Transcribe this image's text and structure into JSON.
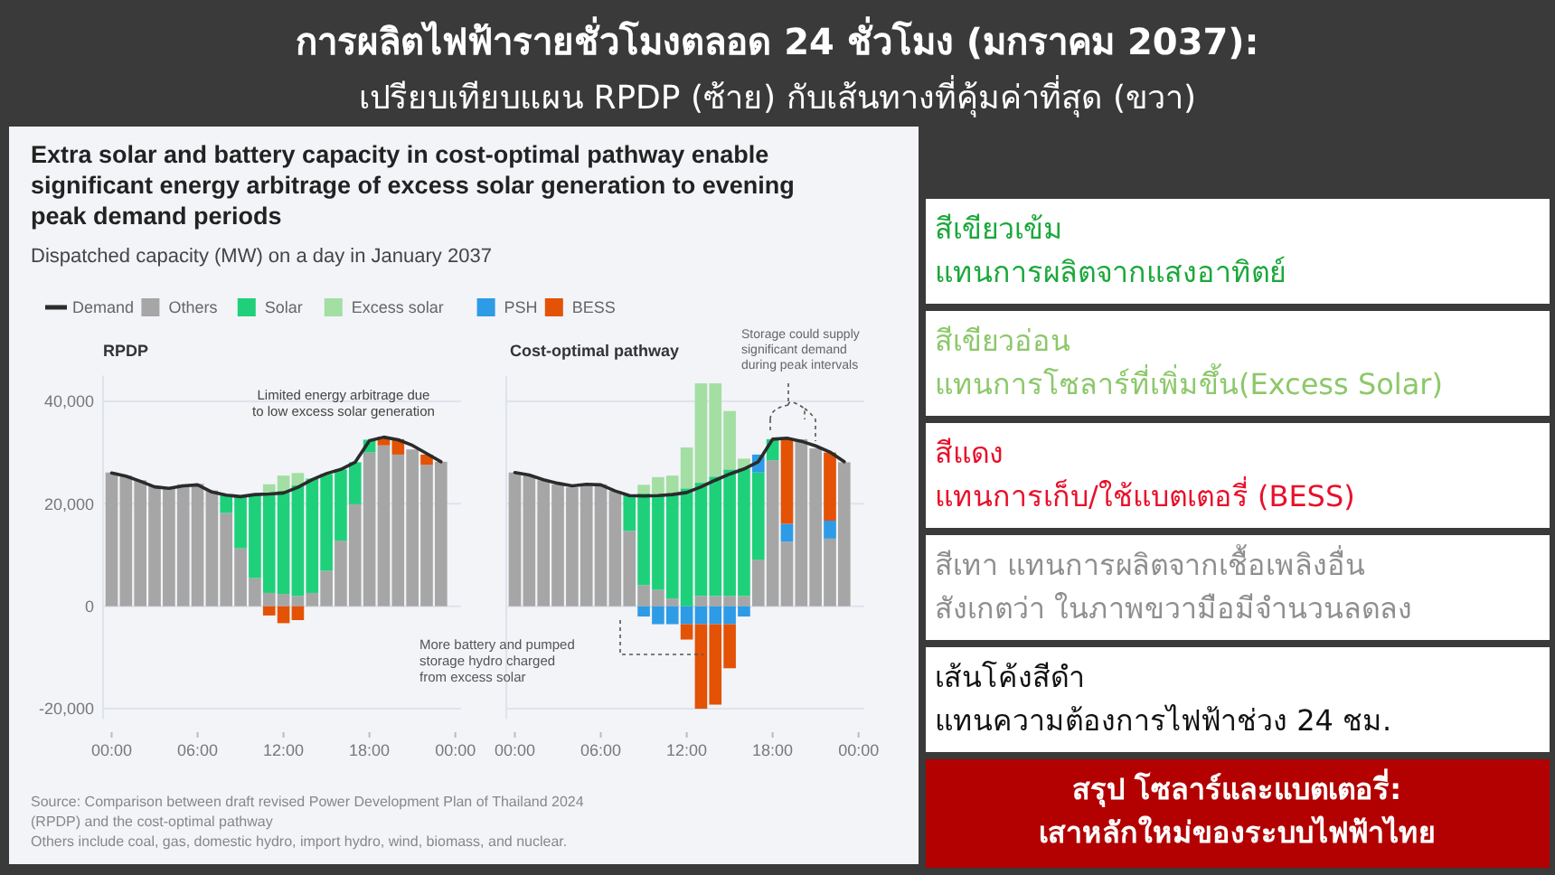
{
  "chart_data": [
    {
      "type": "bar",
      "stacked": true,
      "title": "Extra solar and battery capacity in cost-optimal pathway enable\nsignificant energy arbitrage of excess solar generation to evening\npeak demand periods",
      "subtitle": "Dispatched capacity (MW) on a day in January 2037",
      "legend": "top",
      "grid": "y",
      "tick_labels": "xy",
      "x": [
        0,
        1,
        2,
        3,
        4,
        5,
        6,
        7,
        8,
        9,
        10,
        11,
        12,
        13,
        14,
        15,
        16,
        17,
        18,
        19,
        20,
        21,
        22,
        23
      ],
      "xlim": [
        -0.6,
        24.4
      ],
      "xticks": [
        {
          "value": 0,
          "label": "00:00"
        },
        {
          "value": 6,
          "label": "06:00"
        },
        {
          "value": 12,
          "label": "12:00"
        },
        {
          "value": 18,
          "label": "18:00"
        },
        {
          "value": 24,
          "label": "00:00"
        }
      ],
      "ylim": [
        -22000,
        45000
      ],
      "yticks": [
        {
          "value": -20000,
          "label": "-20,000"
        },
        {
          "value": 0,
          "label": "0"
        },
        {
          "value": 20000,
          "label": "20,000"
        },
        {
          "value": 40000,
          "label": "40,000"
        }
      ],
      "series": [
        {
          "name": "Demand",
          "type": "line",
          "color": "#2b2b2b",
          "values": [
            26000,
            25400,
            24400,
            23300,
            23000,
            23500,
            23700,
            22300,
            21700,
            21400,
            21800,
            21900,
            22100,
            23200,
            24700,
            25900,
            26700,
            28100,
            32300,
            33000,
            32500,
            31400,
            29800,
            28200
          ]
        },
        {
          "name": "Others",
          "color": "#a6a6a6",
          "values": [
            26100,
            25500,
            24600,
            23500,
            23000,
            23800,
            23900,
            22600,
            18200,
            11300,
            5500,
            2600,
            2400,
            2000,
            2600,
            6900,
            12800,
            19900,
            30000,
            31400,
            29600,
            30600,
            27600,
            28200
          ]
        },
        {
          "name": "Solar",
          "color": "#1fd07a",
          "values": [
            null,
            null,
            null,
            null,
            null,
            null,
            null,
            null,
            3600,
            10100,
            16300,
            19600,
            20100,
            21600,
            22300,
            18900,
            13900,
            8200,
            2500,
            null,
            null,
            null,
            null,
            null
          ]
        },
        {
          "name": "Excess solar",
          "color": "#a3dea3",
          "values": [
            null,
            null,
            null,
            null,
            null,
            null,
            null,
            null,
            null,
            null,
            null,
            1600,
            3000,
            2400,
            null,
            null,
            null,
            null,
            null,
            null,
            null,
            null,
            null,
            null
          ]
        },
        {
          "name": "PSH",
          "color": "#2e9be6",
          "values": [
            null,
            null,
            null,
            null,
            null,
            null,
            null,
            null,
            null,
            null,
            null,
            null,
            null,
            null,
            null,
            null,
            null,
            null,
            null,
            null,
            null,
            null,
            null,
            null
          ]
        },
        {
          "name": "BESS",
          "color": "#e35205",
          "values": [
            null,
            null,
            null,
            null,
            null,
            null,
            null,
            null,
            null,
            null,
            null,
            -1800,
            -3300,
            -2700,
            null,
            null,
            null,
            null,
            null,
            1700,
            3000,
            null,
            2000,
            null
          ]
        }
      ],
      "annotations": [
        "RPDP",
        "Limited energy arbitrage due\nto low excess solar generation",
        "Source: Comparison between draft revised Power Development Plan of Thailand 2024\n(RPDP) and the cost-optimal pathway",
        "Others include coal, gas, domestic hydro, import hydro, wind, biomass, and nuclear."
      ]
    },
    {
      "type": "bar",
      "stacked": true,
      "title": "Cost-optimal pathway",
      "legend": false,
      "grid": "y",
      "tick_labels": "x",
      "x": [
        0,
        1,
        2,
        3,
        4,
        5,
        6,
        7,
        8,
        9,
        10,
        11,
        12,
        13,
        14,
        15,
        16,
        17,
        18,
        19,
        20,
        21,
        22,
        23
      ],
      "xlim": [
        -0.6,
        24.4
      ],
      "xticks": [
        {
          "value": 0,
          "label": "00:00"
        },
        {
          "value": 6,
          "label": "06:00"
        },
        {
          "value": 12,
          "label": "12:00"
        },
        {
          "value": 18,
          "label": "18:00"
        },
        {
          "value": 24,
          "label": "00:00"
        }
      ],
      "ylim": [
        -22000,
        45000
      ],
      "yticks": [
        {
          "value": -20000,
          "label": null
        },
        {
          "value": 0,
          "label": null
        },
        {
          "value": 20000,
          "label": null
        },
        {
          "value": 40000,
          "label": null
        }
      ],
      "series": [
        {
          "type": "line",
          "color": "#2b2b2b",
          "values": [
            26100,
            25600,
            24700,
            24000,
            23500,
            23800,
            23700,
            22500,
            21600,
            21500,
            21600,
            21800,
            22200,
            23300,
            24600,
            25800,
            26800,
            28200,
            32600,
            32800,
            32200,
            31300,
            30100,
            28200
          ]
        },
        {
          "color": "#a6a6a6",
          "values": [
            26100,
            25500,
            24600,
            23800,
            23200,
            23800,
            23800,
            22500,
            14700,
            4100,
            3200,
            1500,
            0,
            2000,
            2000,
            2000,
            2000,
            9100,
            28500,
            12600,
            32600,
            30800,
            13200,
            28100
          ]
        },
        {
          "color": "#1fd07a",
          "values": [
            null,
            null,
            null,
            null,
            null,
            null,
            null,
            null,
            7100,
            17900,
            18600,
            20600,
            23000,
            22100,
            23300,
            24700,
            24900,
            17000,
            4100,
            null,
            null,
            null,
            null,
            null
          ]
        },
        {
          "color": "#a3dea3",
          "values": [
            null,
            null,
            null,
            null,
            null,
            null,
            null,
            null,
            null,
            1700,
            3400,
            3400,
            8000,
            19400,
            18200,
            11400,
            1900,
            null,
            null,
            null,
            null,
            null,
            null,
            null
          ]
        },
        {
          "color": "#2e9be6",
          "values": [
            null,
            null,
            null,
            null,
            null,
            null,
            null,
            null,
            null,
            -2000,
            -3500,
            -3500,
            -3500,
            -3500,
            -3500,
            -3500,
            -2000,
            3500,
            null,
            3500,
            null,
            null,
            3500,
            null
          ]
        },
        {
          "color": "#e35205",
          "values": [
            null,
            null,
            null,
            null,
            null,
            null,
            null,
            null,
            null,
            null,
            null,
            null,
            -3000,
            -16500,
            -15700,
            -8600,
            null,
            null,
            null,
            16500,
            null,
            null,
            13300,
            null
          ]
        }
      ],
      "annotations": [
        "Storage could supply\nsignificant demand\nduring peak intervals",
        "More battery and pumped\nstorage hydro charged\nfrom excess solar"
      ]
    },
    {
      "type": "other",
      "title": "การผลิตไฟฟ้ารายชั่วโมงตลอด 24 ชั่วโมง (มกราคม 2037):",
      "subtitle": "เปรียบเทียบแผน RPDP (ซ้าย) กับเส้นทางที่คุ้มค่าที่สุด (ขวา)",
      "annotations": [
        "สีเขียวเข้ม\nแทนการผลิตจากแสงอาทิตย์",
        "สีเขียวอ่อน\nแทนการโซลาร์ที่เพิ่มขึ้น(Excess Solar)",
        "สีแดง\nแทนการเก็บ/ใช้แบตเตอรี่ (BESS)",
        "สีเทา แทนการผลิตจากเชื้อเพลิงอื่น\nสังเกตว่า ในภาพขวามือมีจำนวนลดลง",
        "เส้นโค้งสีดำ\nแทนความต้องการไฟฟ้าช่วง 24 ชม.",
        "สรุป โซลาร์และแบตเตอรี่:\nเสาหลักใหม่ของระบบไฟฟ้าไทย"
      ]
    }
  ]
}
